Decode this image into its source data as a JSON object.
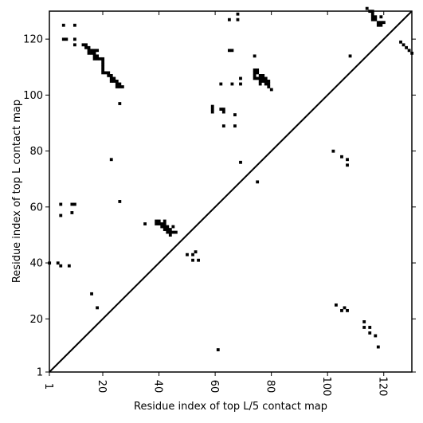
{
  "chart_data": {
    "type": "heatmap",
    "xlabel": "Residue index of top L/5 contact map",
    "ylabel": "Residue index of top L contact map",
    "xlim": [
      1,
      130
    ],
    "ylim": [
      1,
      130
    ],
    "x_ticks": [
      1,
      20,
      40,
      60,
      80,
      100,
      120
    ],
    "y_ticks": [
      1,
      20,
      40,
      60,
      80,
      100,
      120
    ],
    "diagonal_line": true,
    "cell_color": "#000000",
    "background_color": "#ffffff",
    "contacts_top_L": [
      [
        6,
        125
      ],
      [
        10,
        125
      ],
      [
        6,
        120
      ],
      [
        7,
        120
      ],
      [
        10,
        120
      ],
      [
        10,
        118
      ],
      [
        13,
        118
      ],
      [
        14,
        118
      ],
      [
        14,
        117
      ],
      [
        15,
        117
      ],
      [
        15,
        116
      ],
      [
        16,
        116
      ],
      [
        17,
        116
      ],
      [
        18,
        116
      ],
      [
        15,
        115
      ],
      [
        16,
        115
      ],
      [
        17,
        115
      ],
      [
        17,
        114
      ],
      [
        18,
        114
      ],
      [
        17,
        113
      ],
      [
        18,
        113
      ],
      [
        19,
        113
      ],
      [
        20,
        113
      ],
      [
        20,
        112
      ],
      [
        20,
        111
      ],
      [
        20,
        110
      ],
      [
        20,
        109
      ],
      [
        20,
        108
      ],
      [
        21,
        108
      ],
      [
        22,
        108
      ],
      [
        22,
        107
      ],
      [
        23,
        107
      ],
      [
        23,
        106
      ],
      [
        24,
        106
      ],
      [
        23,
        105
      ],
      [
        24,
        105
      ],
      [
        25,
        105
      ],
      [
        25,
        104
      ],
      [
        26,
        104
      ],
      [
        25,
        103
      ],
      [
        26,
        103
      ],
      [
        27,
        103
      ],
      [
        26,
        97
      ],
      [
        65,
        127
      ],
      [
        68,
        129
      ],
      [
        68,
        127
      ],
      [
        65,
        116
      ],
      [
        66,
        116
      ],
      [
        74,
        114
      ],
      [
        74,
        109
      ],
      [
        75,
        109
      ],
      [
        74,
        108
      ],
      [
        75,
        108
      ],
      [
        74,
        107
      ],
      [
        76,
        107
      ],
      [
        77,
        107
      ],
      [
        74,
        106
      ],
      [
        75,
        106
      ],
      [
        76,
        106
      ],
      [
        77,
        106
      ],
      [
        78,
        106
      ],
      [
        69,
        106
      ],
      [
        76,
        105
      ],
      [
        77,
        105
      ],
      [
        78,
        105
      ],
      [
        79,
        105
      ],
      [
        62,
        104
      ],
      [
        66,
        104
      ],
      [
        69,
        104
      ],
      [
        76,
        104
      ],
      [
        78,
        104
      ],
      [
        79,
        104
      ],
      [
        79,
        103
      ],
      [
        80,
        102
      ],
      [
        59,
        96
      ],
      [
        59,
        95
      ],
      [
        59,
        94
      ],
      [
        62,
        95
      ],
      [
        63,
        95
      ],
      [
        63,
        94
      ],
      [
        67,
        93
      ],
      [
        63,
        89
      ],
      [
        67,
        89
      ],
      [
        69,
        76
      ],
      [
        23,
        77
      ],
      [
        26,
        62
      ],
      [
        75,
        69
      ],
      [
        114,
        131
      ],
      [
        115,
        130
      ],
      [
        116,
        130
      ],
      [
        116,
        129
      ],
      [
        116,
        128
      ],
      [
        117,
        128
      ],
      [
        119,
        128
      ],
      [
        116,
        127
      ],
      [
        117,
        127
      ],
      [
        118,
        126
      ],
      [
        119,
        126
      ],
      [
        120,
        126
      ],
      [
        118,
        125
      ],
      [
        119,
        125
      ],
      [
        108,
        114
      ],
      [
        126,
        119
      ],
      [
        127,
        118
      ],
      [
        128,
        117
      ],
      [
        129,
        116
      ],
      [
        130,
        115
      ],
      [
        102,
        80
      ],
      [
        105,
        78
      ],
      [
        107,
        77
      ],
      [
        107,
        75
      ],
      [
        5,
        61
      ],
      [
        9,
        61
      ],
      [
        10,
        61
      ],
      [
        9,
        58
      ],
      [
        5,
        57
      ],
      [
        35,
        54
      ],
      [
        39,
        55
      ],
      [
        40,
        55
      ],
      [
        42,
        55
      ],
      [
        39,
        54
      ],
      [
        40,
        54
      ],
      [
        41,
        54
      ],
      [
        42,
        54
      ],
      [
        41,
        53
      ],
      [
        42,
        53
      ],
      [
        43,
        53
      ],
      [
        45,
        53
      ],
      [
        42,
        52
      ],
      [
        43,
        52
      ],
      [
        44,
        52
      ],
      [
        43,
        51
      ],
      [
        44,
        51
      ],
      [
        45,
        51
      ],
      [
        46,
        51
      ],
      [
        44,
        50
      ],
      [
        50,
        43
      ],
      [
        52,
        43
      ],
      [
        53,
        44
      ],
      [
        52,
        41
      ],
      [
        54,
        41
      ],
      [
        1,
        40
      ],
      [
        4,
        40
      ],
      [
        5,
        39
      ],
      [
        8,
        39
      ],
      [
        16,
        29
      ],
      [
        18,
        24
      ],
      [
        103,
        25
      ],
      [
        105,
        23
      ],
      [
        106,
        24
      ],
      [
        107,
        23
      ],
      [
        113,
        19
      ],
      [
        113,
        17
      ],
      [
        115,
        17
      ],
      [
        115,
        15
      ],
      [
        117,
        14
      ],
      [
        118,
        10
      ],
      [
        61,
        9
      ]
    ]
  }
}
